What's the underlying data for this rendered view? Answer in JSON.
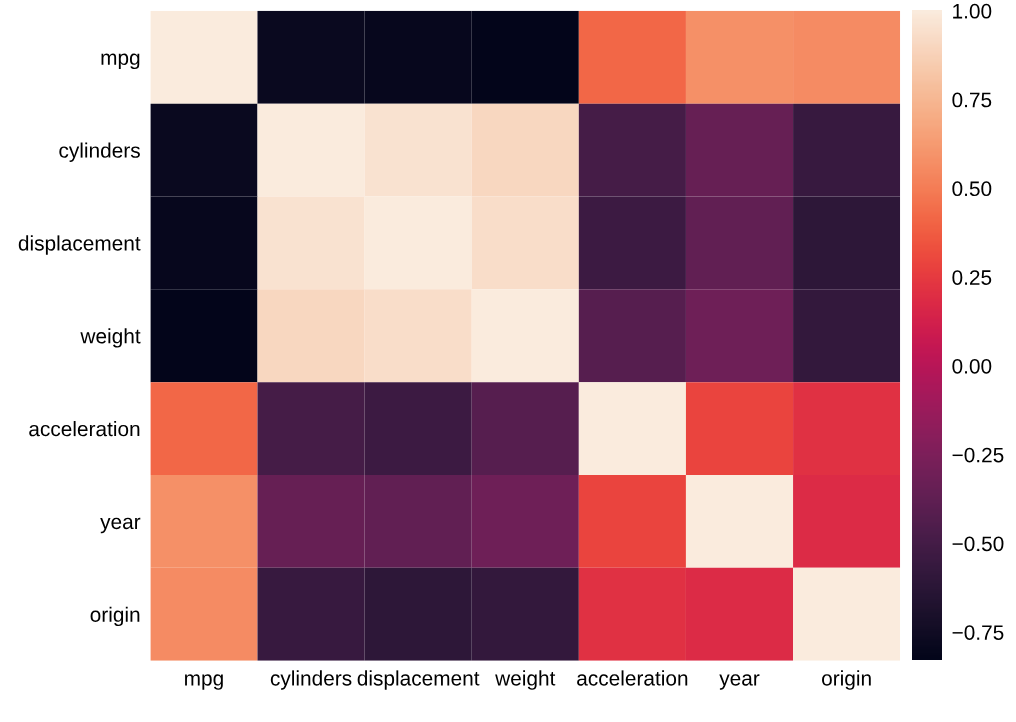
{
  "chart_data": {
    "type": "heatmap",
    "categories": [
      "mpg",
      "cylinders",
      "displacement",
      "weight",
      "acceleration",
      "year",
      "origin"
    ],
    "y_categories": [
      "mpg",
      "cylinders",
      "displacement",
      "weight",
      "acceleration",
      "year",
      "origin"
    ],
    "cells": [
      [
        1.0,
        -0.78,
        -0.8,
        -0.83,
        0.42,
        0.58,
        0.56
      ],
      [
        -0.78,
        1.0,
        0.95,
        0.9,
        -0.5,
        -0.35,
        -0.56
      ],
      [
        -0.8,
        0.95,
        1.0,
        0.93,
        -0.54,
        -0.37,
        -0.61
      ],
      [
        -0.83,
        0.9,
        0.93,
        1.0,
        -0.42,
        -0.31,
        -0.58
      ],
      [
        0.42,
        -0.5,
        -0.54,
        -0.42,
        1.0,
        0.29,
        0.21
      ],
      [
        0.58,
        -0.35,
        -0.37,
        -0.31,
        0.29,
        1.0,
        0.18
      ],
      [
        0.56,
        -0.56,
        -0.61,
        -0.58,
        0.21,
        0.18,
        1.0
      ]
    ],
    "clim": [
      -0.83,
      1.0
    ],
    "cticks": [
      {
        "value": -0.75,
        "label": "−0.75"
      },
      {
        "value": -0.5,
        "label": "−0.50"
      },
      {
        "value": -0.25,
        "label": "−0.25"
      },
      {
        "value": 0.0,
        "label": "0.00"
      },
      {
        "value": 0.25,
        "label": "0.25"
      },
      {
        "value": 0.5,
        "label": "0.50"
      },
      {
        "value": 0.75,
        "label": "0.75"
      },
      {
        "value": 1.0,
        "label": "1.00"
      }
    ]
  }
}
